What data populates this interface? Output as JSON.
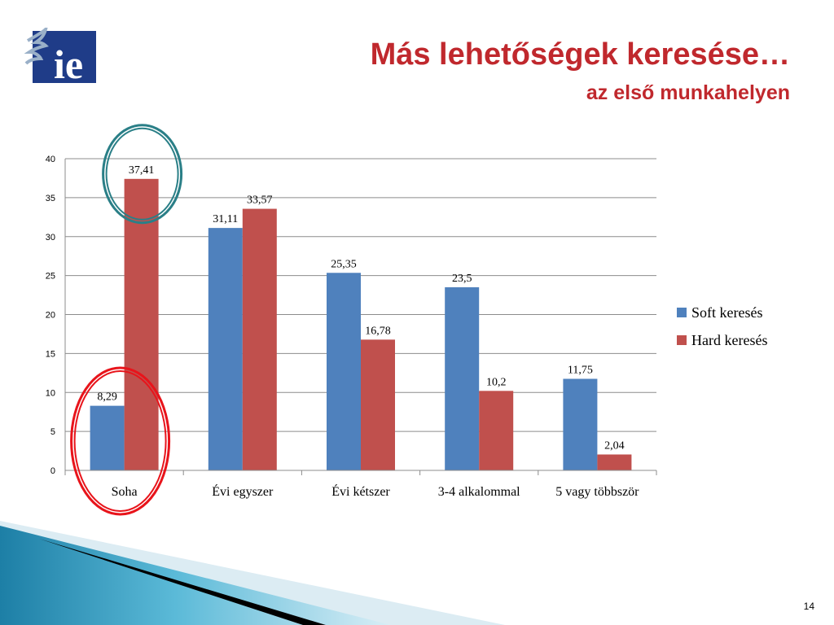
{
  "slide": {
    "title": "Más lehetőségek keresése…",
    "subtitle": "az első munkahelyen",
    "slide_number": "14",
    "logo_text": "ie",
    "accent_color": "#c0282d",
    "logo_color": "#1f3c88"
  },
  "chart_data": {
    "type": "bar",
    "categories": [
      "Soha",
      "Évi egyszer",
      "Évi kétszer",
      "3-4 alkalommal",
      "5 vagy többször"
    ],
    "series": [
      {
        "name": "Soft keresés",
        "color": "#4f81bd",
        "values": [
          8.29,
          31.11,
          25.35,
          23.5,
          11.75
        ],
        "labels": [
          "8,29",
          "31,11",
          "25,35",
          "23,5",
          "11,75"
        ]
      },
      {
        "name": "Hard keresés",
        "color": "#c0504d",
        "values": [
          37.41,
          33.57,
          16.78,
          10.2,
          2.04
        ],
        "labels": [
          "37,41",
          "33,57",
          "16,78",
          "10,2",
          "2,04"
        ]
      }
    ],
    "ylim": [
      0,
      40
    ],
    "yticks": [
      0,
      5,
      10,
      15,
      20,
      25,
      30,
      35,
      40
    ],
    "grid": true,
    "legend": "right",
    "annotations": [
      {
        "shape": "ellipse",
        "color": "#2a7f87",
        "target": "Hard keresés: Soha"
      },
      {
        "shape": "ellipse",
        "color": "#e8141b",
        "target": "Soft keresés: Soha"
      }
    ]
  }
}
